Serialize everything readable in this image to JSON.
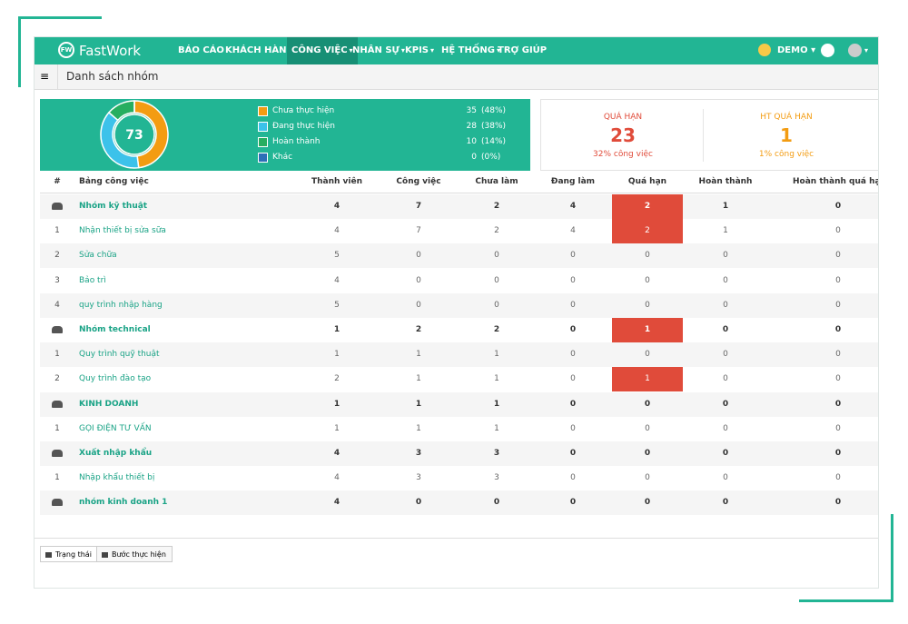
{
  "navbar": {
    "brand": "FastWork",
    "menu": [
      "BÁO CÁO",
      "KHÁCH HÀNG",
      "CÔNG VIỆC",
      "NHÂN SỰ",
      "KPIS",
      "HỆ THỐNG",
      "TRỢ GIÚP"
    ],
    "user": "DEMO"
  },
  "breadcrumb": "Danh sách nhóm",
  "summary": {
    "total": 73,
    "items": [
      {
        "label": "Chưa thực hiện",
        "count": 35,
        "percent": "(48%)",
        "color": "#f39c12"
      },
      {
        "label": "Đang thực hiện",
        "count": 28,
        "percent": "(38%)",
        "color": "#3cc2ea"
      },
      {
        "label": "Hoàn thành",
        "count": 10,
        "percent": "(14%)",
        "color": "#27ae60"
      },
      {
        "label": "Khác",
        "count": 0,
        "percent": "(0%)",
        "color": "#2c6fb7"
      }
    ]
  },
  "stats": [
    {
      "title": "QUÁ HẠN",
      "value": 23,
      "note": "32% công việc",
      "color": "#e04b3a"
    },
    {
      "title": "HT QUÁ HẠN",
      "value": 1,
      "note": "1% công việc",
      "color": "#f39c12"
    }
  ],
  "table": {
    "headers": [
      "#",
      "Bảng công việc",
      "Thành viên",
      "Công việc",
      "Chưa làm",
      "Đang làm",
      "Quá hạn",
      "Hoàn thành",
      "Hoàn thành quá hạn"
    ],
    "rows": [
      {
        "name": "Nhóm kỹ thuật",
        "values": [
          4,
          7,
          2,
          4,
          2,
          1,
          0
        ]
      },
      {
        "no": 1,
        "name": "Nhận thiết bị sửa sữa",
        "values": [
          4,
          7,
          2,
          4,
          2,
          1,
          0
        ]
      },
      {
        "no": 2,
        "name": "Sửa chữa",
        "values": [
          5,
          0,
          0,
          0,
          0,
          0,
          0
        ]
      },
      {
        "no": 3,
        "name": "Bảo trì",
        "values": [
          4,
          0,
          0,
          0,
          0,
          0,
          0
        ]
      },
      {
        "no": 4,
        "name": "quy trình nhập hàng",
        "values": [
          5,
          0,
          0,
          0,
          0,
          0,
          0
        ]
      },
      {
        "name": "Nhóm technical",
        "values": [
          1,
          2,
          2,
          0,
          1,
          0,
          0
        ]
      },
      {
        "no": 1,
        "name": "Quy trình quỹ thuật",
        "values": [
          1,
          1,
          1,
          0,
          0,
          0,
          0
        ]
      },
      {
        "no": 2,
        "name": "Quy trình đào tạo",
        "values": [
          2,
          1,
          1,
          0,
          1,
          0,
          0
        ]
      },
      {
        "name": "KINH DOANH",
        "values": [
          1,
          1,
          1,
          0,
          0,
          0,
          0
        ]
      },
      {
        "no": 1,
        "name": "GỌI ĐIỆN TƯ VẤN",
        "values": [
          1,
          1,
          1,
          0,
          0,
          0,
          0
        ]
      },
      {
        "name": "Xuất nhập khẩu",
        "values": [
          4,
          3,
          3,
          0,
          0,
          0,
          0
        ]
      },
      {
        "no": 1,
        "name": "Nhập khẩu thiết bị",
        "values": [
          4,
          3,
          3,
          0,
          0,
          0,
          0
        ]
      },
      {
        "name": "nhóm kinh doanh 1",
        "values": [
          4,
          0,
          0,
          0,
          0,
          0,
          0
        ]
      }
    ]
  },
  "buttons": [
    "Trạng thái",
    "Bước thực hiện"
  ]
}
